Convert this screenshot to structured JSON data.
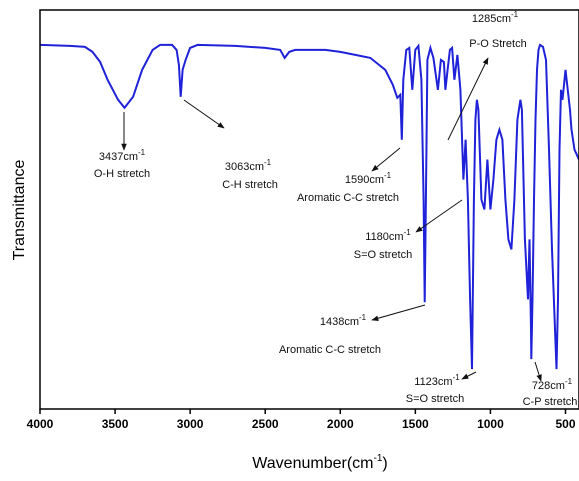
{
  "chart_data": {
    "type": "line",
    "x_label": {
      "text": "Wavenumber(cm",
      "sup": "-1",
      "end": ")"
    },
    "y_label": "Transmittance",
    "xlim": [
      4000,
      410
    ],
    "ylim": [
      0,
      400
    ],
    "xticks": [
      4000,
      3500,
      3000,
      2500,
      2000,
      1500,
      1000,
      500
    ],
    "series": [
      {
        "color": "#1f22d8",
        "x": [
          4000,
          3800,
          3700,
          3650,
          3600,
          3550,
          3480,
          3437,
          3380,
          3320,
          3250,
          3200,
          3120,
          3090,
          3075,
          3063,
          3050,
          3030,
          3000,
          2950,
          2700,
          2500,
          2400,
          2370,
          2340,
          2300,
          2100,
          2000,
          1900,
          1800,
          1700,
          1650,
          1620,
          1600,
          1590,
          1580,
          1560,
          1540,
          1520,
          1500,
          1480,
          1460,
          1445,
          1438,
          1430,
          1420,
          1400,
          1380,
          1350,
          1330,
          1310,
          1300,
          1285,
          1270,
          1255,
          1240,
          1220,
          1200,
          1180,
          1165,
          1150,
          1135,
          1123,
          1110,
          1100,
          1090,
          1080,
          1060,
          1040,
          1020,
          1000,
          980,
          960,
          940,
          920,
          900,
          880,
          860,
          840,
          820,
          800,
          790,
          770,
          750,
          740,
          730,
          728,
          720,
          710,
          700,
          690,
          680,
          670,
          650,
          630,
          610,
          590,
          570,
          560,
          550,
          540,
          530,
          520,
          510,
          500,
          470,
          460,
          440,
          410
        ],
        "values": [
          365,
          364,
          363,
          358,
          348,
          330,
          310,
          302,
          313,
          340,
          360,
          365,
          365,
          360,
          345,
          313,
          340,
          350,
          362,
          365,
          364,
          362,
          360,
          352,
          358,
          360,
          360,
          358,
          355,
          352,
          340,
          325,
          312,
          315,
          270,
          330,
          360,
          362,
          320,
          360,
          364,
          330,
          210,
          107,
          210,
          350,
          362,
          352,
          320,
          350,
          348,
          320,
          340,
          360,
          362,
          330,
          355,
          320,
          230,
          270,
          210,
          110,
          40,
          210,
          290,
          310,
          300,
          210,
          200,
          250,
          200,
          230,
          270,
          280,
          270,
          210,
          170,
          160,
          210,
          290,
          310,
          300,
          170,
          110,
          170,
          80,
          50,
          110,
          210,
          290,
          340,
          360,
          365,
          363,
          350,
          260,
          160,
          80,
          40,
          110,
          260,
          320,
          310,
          325,
          340,
          300,
          280,
          260,
          250
        ]
      }
    ],
    "annotations": [
      {
        "text": "3437cm",
        "sup": "-1",
        "label": "O-H stretch"
      },
      {
        "text": "3063cm",
        "sup": "-1",
        "label": "C-H stretch"
      },
      {
        "text": "1590cm",
        "sup": "-1",
        "label": "Aromatic C-C stretch"
      },
      {
        "text": "1285cm",
        "sup": "-1",
        "label": "P-O Stretch"
      },
      {
        "text": "1180cm",
        "sup": "-1",
        "label": "S=O stretch"
      },
      {
        "text": "1438cm",
        "sup": "-1",
        "label": "Aromatic C-C stretch"
      },
      {
        "text": "1123cm",
        "sup": "-1",
        "label": "S=O stretch"
      },
      {
        "text": "728cm",
        "sup": "-1",
        "label": "C-P stretch"
      }
    ]
  }
}
